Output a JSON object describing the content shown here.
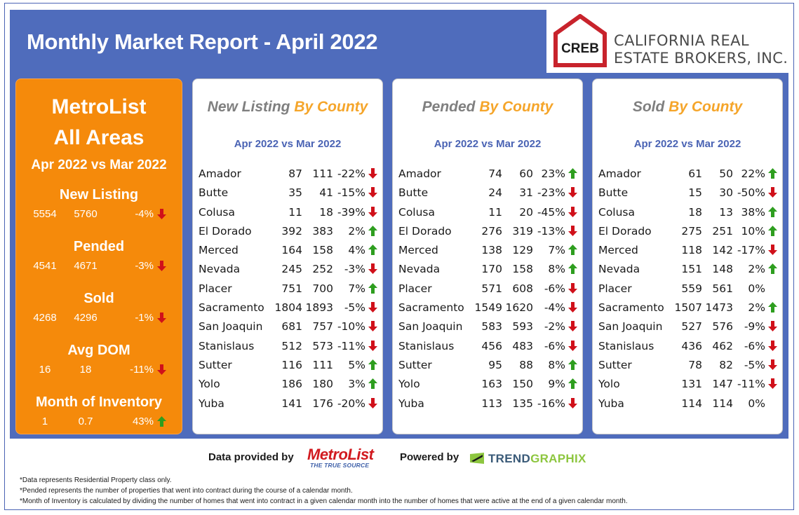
{
  "header": {
    "title": "Monthly Market Report - April 2022"
  },
  "logo": {
    "mark": "CREB",
    "line1": "CALIFORNIA REAL",
    "line2": "ESTATE BROKERS, INC."
  },
  "summary": {
    "title_line1": "MetroList",
    "title_line2": "All Areas",
    "period": "Apr 2022 vs Mar 2022",
    "stats": [
      {
        "label": "New Listing",
        "current": "5554",
        "previous": "5760",
        "change": "-4%",
        "trend": "down"
      },
      {
        "label": "Pended",
        "current": "4541",
        "previous": "4671",
        "change": "-3%",
        "trend": "down"
      },
      {
        "label": "Sold",
        "current": "4268",
        "previous": "4296",
        "change": "-1%",
        "trend": "down"
      },
      {
        "label": "Avg DOM",
        "current": "16",
        "previous": "18",
        "change": "-11%",
        "trend": "down"
      },
      {
        "label": "Month of Inventory",
        "current": "1",
        "previous": "0.7",
        "change": "43%",
        "trend": "up"
      }
    ]
  },
  "panels": [
    {
      "title_gray": "New Listing",
      "title_orange": " By County",
      "period": "Apr 2022 vs Mar 2022",
      "rows": [
        {
          "county": "Amador",
          "current": "87",
          "previous": "111",
          "change": "-22%",
          "trend": "down"
        },
        {
          "county": "Butte",
          "current": "35",
          "previous": "41",
          "change": "-15%",
          "trend": "down"
        },
        {
          "county": "Colusa",
          "current": "11",
          "previous": "18",
          "change": "-39%",
          "trend": "down"
        },
        {
          "county": "El Dorado",
          "current": "392",
          "previous": "383",
          "change": "2%",
          "trend": "up"
        },
        {
          "county": "Merced",
          "current": "164",
          "previous": "158",
          "change": "4%",
          "trend": "up"
        },
        {
          "county": "Nevada",
          "current": "245",
          "previous": "252",
          "change": "-3%",
          "trend": "down"
        },
        {
          "county": "Placer",
          "current": "751",
          "previous": "700",
          "change": "7%",
          "trend": "up"
        },
        {
          "county": "Sacramento",
          "current": "1804",
          "previous": "1893",
          "change": "-5%",
          "trend": "down"
        },
        {
          "county": "San Joaquin",
          "current": "681",
          "previous": "757",
          "change": "-10%",
          "trend": "down"
        },
        {
          "county": "Stanislaus",
          "current": "512",
          "previous": "573",
          "change": "-11%",
          "trend": "down"
        },
        {
          "county": "Sutter",
          "current": "116",
          "previous": "111",
          "change": "5%",
          "trend": "up"
        },
        {
          "county": "Yolo",
          "current": "186",
          "previous": "180",
          "change": "3%",
          "trend": "up"
        },
        {
          "county": "Yuba",
          "current": "141",
          "previous": "176",
          "change": "-20%",
          "trend": "down"
        }
      ]
    },
    {
      "title_gray": "Pended",
      "title_orange": " By County",
      "period": "Apr 2022 vs Mar 2022",
      "rows": [
        {
          "county": "Amador",
          "current": "74",
          "previous": "60",
          "change": "23%",
          "trend": "up"
        },
        {
          "county": "Butte",
          "current": "24",
          "previous": "31",
          "change": "-23%",
          "trend": "down"
        },
        {
          "county": "Colusa",
          "current": "11",
          "previous": "20",
          "change": "-45%",
          "trend": "down"
        },
        {
          "county": "El Dorado",
          "current": "276",
          "previous": "319",
          "change": "-13%",
          "trend": "down"
        },
        {
          "county": "Merced",
          "current": "138",
          "previous": "129",
          "change": "7%",
          "trend": "up"
        },
        {
          "county": "Nevada",
          "current": "170",
          "previous": "158",
          "change": "8%",
          "trend": "up"
        },
        {
          "county": "Placer",
          "current": "571",
          "previous": "608",
          "change": "-6%",
          "trend": "down"
        },
        {
          "county": "Sacramento",
          "current": "1549",
          "previous": "1620",
          "change": "-4%",
          "trend": "down"
        },
        {
          "county": "San Joaquin",
          "current": "583",
          "previous": "593",
          "change": "-2%",
          "trend": "down"
        },
        {
          "county": "Stanislaus",
          "current": "456",
          "previous": "483",
          "change": "-6%",
          "trend": "down"
        },
        {
          "county": "Sutter",
          "current": "95",
          "previous": "88",
          "change": "8%",
          "trend": "up"
        },
        {
          "county": "Yolo",
          "current": "163",
          "previous": "150",
          "change": "9%",
          "trend": "up"
        },
        {
          "county": "Yuba",
          "current": "113",
          "previous": "135",
          "change": "-16%",
          "trend": "down"
        }
      ]
    },
    {
      "title_gray": "Sold",
      "title_orange": " By County",
      "period": "Apr 2022 vs Mar 2022",
      "rows": [
        {
          "county": "Amador",
          "current": "61",
          "previous": "50",
          "change": "22%",
          "trend": "up"
        },
        {
          "county": "Butte",
          "current": "15",
          "previous": "30",
          "change": "-50%",
          "trend": "down"
        },
        {
          "county": "Colusa",
          "current": "18",
          "previous": "13",
          "change": "38%",
          "trend": "up"
        },
        {
          "county": "El Dorado",
          "current": "275",
          "previous": "251",
          "change": "10%",
          "trend": "up"
        },
        {
          "county": "Merced",
          "current": "118",
          "previous": "142",
          "change": "-17%",
          "trend": "down"
        },
        {
          "county": "Nevada",
          "current": "151",
          "previous": "148",
          "change": "2%",
          "trend": "up"
        },
        {
          "county": "Placer",
          "current": "559",
          "previous": "561",
          "change": "0%",
          "trend": "none"
        },
        {
          "county": "Sacramento",
          "current": "1507",
          "previous": "1473",
          "change": "2%",
          "trend": "up"
        },
        {
          "county": "San Joaquin",
          "current": "527",
          "previous": "576",
          "change": "-9%",
          "trend": "down"
        },
        {
          "county": "Stanislaus",
          "current": "436",
          "previous": "462",
          "change": "-6%",
          "trend": "down"
        },
        {
          "county": "Sutter",
          "current": "78",
          "previous": "82",
          "change": "-5%",
          "trend": "down"
        },
        {
          "county": "Yolo",
          "current": "131",
          "previous": "147",
          "change": "-11%",
          "trend": "down"
        },
        {
          "county": "Yuba",
          "current": "114",
          "previous": "114",
          "change": "0%",
          "trend": "none"
        }
      ]
    }
  ],
  "footer": {
    "provided_by": "Data provided by",
    "metrolist_word": "MetroList",
    "metrolist_tag": "THE TRUE SOURCE",
    "powered_by": "Powered by",
    "trendgraphix_a": "TREND",
    "trendgraphix_b": "GRAPHIX",
    "notes": [
      "*Data represents Residential Property class only.",
      "*Pended represents the number of properties that went into contract during the course of a calendar month.",
      "*Month of Inventory is calculated by dividing the number of homes that went into contract in a given calendar month into the number of homes that were active at the end of a given calendar month."
    ]
  },
  "colors": {
    "up": "#2e9e1f",
    "down": "#d0101a",
    "orange": "#f58a0b",
    "blue": "#4f6cbc"
  }
}
